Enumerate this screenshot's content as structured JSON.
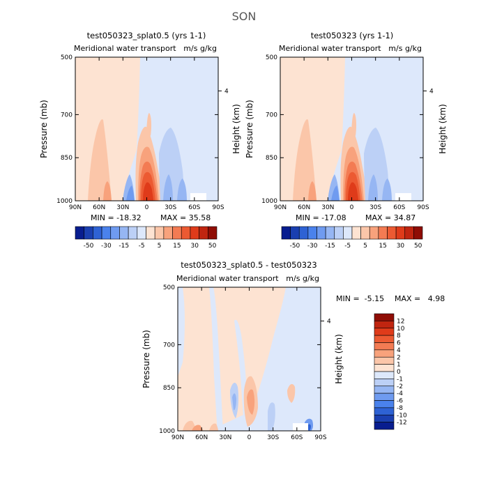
{
  "figure": {
    "title": "SON"
  },
  "colors": {
    "diverging": [
      "#081d8f",
      "#1a3fb0",
      "#2e62d4",
      "#4a82ec",
      "#6f9bf0",
      "#96b6f3",
      "#bcd0f6",
      "#dde8fb",
      "#fde3d2",
      "#fbc6a9",
      "#f8a27c",
      "#f37b53",
      "#ec5a32",
      "#df3b1a",
      "#c02510",
      "#8f0d05"
    ],
    "background_positive": "#fde3d2",
    "background_negative": "#dde8fb"
  },
  "chart_data": [
    {
      "type": "heatmap",
      "title": "test050323_splat0.5 (yrs 1-1)",
      "subtitle_left": "Meridional water transport",
      "subtitle_right": "m/s g/kg",
      "ylabel": "Pressure (mb)",
      "ylabel_right": "Height (km)",
      "yticks": [
        "500",
        "700",
        "850",
        "1000"
      ],
      "yticks_right": [
        "4"
      ],
      "xticks": [
        "90N",
        "60N",
        "30N",
        "0",
        "30S",
        "60S",
        "90S"
      ],
      "min_label": "MIN = -18.32",
      "max_label": "MAX = 35.58",
      "min": -18.32,
      "max": 35.58,
      "colorbar": {
        "orientation": "horizontal",
        "labels": [
          "-50",
          "-30",
          "-15",
          "-5",
          "5",
          "15",
          "30",
          "50"
        ]
      }
    },
    {
      "type": "heatmap",
      "title": "test050323 (yrs 1-1)",
      "subtitle_left": "Meridional water transport",
      "subtitle_right": "m/s g/kg",
      "ylabel": "Pressure (mb)",
      "ylabel_right": "Height (km)",
      "yticks": [
        "500",
        "700",
        "850",
        "1000"
      ],
      "yticks_right": [
        "4"
      ],
      "xticks": [
        "90N",
        "60N",
        "30N",
        "0",
        "30S",
        "60S",
        "90S"
      ],
      "min_label": "MIN = -17.08",
      "max_label": "MAX = 34.87",
      "min": -17.08,
      "max": 34.87,
      "colorbar": {
        "orientation": "horizontal",
        "labels": [
          "-50",
          "-30",
          "-15",
          "-5",
          "5",
          "15",
          "30",
          "50"
        ]
      }
    },
    {
      "type": "heatmap",
      "title": "test050323_splat0.5 - test050323",
      "subtitle_left": "Meridional water transport",
      "subtitle_right": "m/s g/kg",
      "ylabel": "Pressure (mb)",
      "ylabel_right": "Height (km)",
      "yticks": [
        "500",
        "700",
        "850",
        "1000"
      ],
      "yticks_right": [
        "4"
      ],
      "xticks": [
        "90N",
        "60N",
        "30N",
        "0",
        "30S",
        "60S",
        "90S"
      ],
      "min_label": "MIN =  -5.15",
      "max_label": "MAX =   4.98",
      "min": -5.15,
      "max": 4.98,
      "colorbar": {
        "orientation": "vertical",
        "labels": [
          "12",
          "10",
          "8",
          "6",
          "4",
          "2",
          "1",
          "0",
          "-1",
          "-2",
          "-4",
          "-6",
          "-8",
          "-10",
          "-12"
        ]
      }
    }
  ]
}
